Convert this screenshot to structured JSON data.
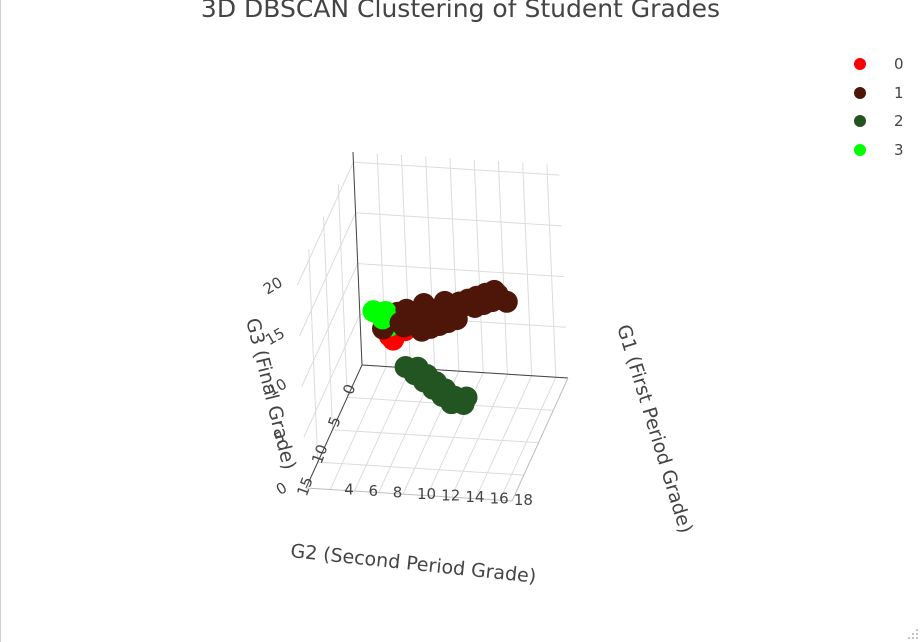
{
  "chart_data": {
    "type": "scatter",
    "title": "3D DBSCAN Clustering of Student Grades",
    "axes": {
      "x": {
        "label": "G1 (First Period Grade)",
        "ticks": [
          "4",
          "6",
          "8",
          "10",
          "12",
          "14",
          "16",
          "18"
        ]
      },
      "y": {
        "label": "G2 (Second Period Grade)",
        "ticks": [
          "0",
          "5",
          "10",
          "15"
        ]
      },
      "z": {
        "label": "G3 (Final Grade)",
        "ticks": [
          "0",
          "5",
          "10",
          "15",
          "20"
        ]
      }
    },
    "legend_position": "top-right",
    "series": [
      {
        "name": "0",
        "color": "#ff0000",
        "points": [
          [
            6,
            5,
            6
          ],
          [
            7,
            5,
            7
          ],
          [
            6,
            6,
            7
          ],
          [
            7,
            6,
            8
          ],
          [
            6,
            5,
            7
          ]
        ]
      },
      {
        "name": "1",
        "color": "#4e1609",
        "points": [
          [
            6,
            8,
            9
          ],
          [
            7,
            7,
            10
          ],
          [
            8,
            9,
            10
          ],
          [
            8,
            8,
            11
          ],
          [
            9,
            9,
            11
          ],
          [
            9,
            10,
            12
          ],
          [
            10,
            9,
            12
          ],
          [
            10,
            10,
            13
          ],
          [
            11,
            11,
            13
          ],
          [
            11,
            10,
            12
          ],
          [
            12,
            11,
            14
          ],
          [
            12,
            12,
            13
          ],
          [
            13,
            12,
            14
          ],
          [
            13,
            13,
            15
          ],
          [
            14,
            13,
            15
          ],
          [
            14,
            14,
            16
          ],
          [
            15,
            14,
            16
          ],
          [
            15,
            15,
            17
          ],
          [
            16,
            15,
            17
          ],
          [
            16,
            16,
            18
          ],
          [
            17,
            16,
            18
          ],
          [
            17,
            17,
            19
          ],
          [
            18,
            17,
            19
          ],
          [
            18,
            18,
            20
          ],
          [
            19,
            18,
            19
          ],
          [
            10,
            11,
            11
          ],
          [
            11,
            12,
            12
          ],
          [
            12,
            13,
            13
          ],
          [
            13,
            14,
            14
          ],
          [
            14,
            15,
            15
          ],
          [
            9,
            8,
            10
          ],
          [
            8,
            10,
            11
          ],
          [
            15,
            13,
            15
          ],
          [
            16,
            14,
            16
          ],
          [
            17,
            15,
            17
          ],
          [
            12,
            10,
            12
          ],
          [
            10,
            12,
            12
          ],
          [
            11,
            9,
            11
          ]
        ]
      },
      {
        "name": "2",
        "color": "#225522",
        "points": [
          [
            8,
            9,
            6
          ],
          [
            9,
            9,
            6
          ],
          [
            9,
            10,
            6
          ],
          [
            10,
            10,
            6
          ],
          [
            10,
            11,
            6
          ],
          [
            11,
            11,
            6
          ],
          [
            11,
            12,
            6
          ],
          [
            12,
            12,
            6
          ],
          [
            12,
            13,
            6
          ],
          [
            13,
            13,
            6
          ],
          [
            14,
            13,
            6
          ],
          [
            13,
            14,
            6
          ],
          [
            14,
            14,
            6
          ]
        ]
      },
      {
        "name": "3",
        "color": "#00ff00",
        "points": [
          [
            6,
            6,
            8
          ],
          [
            6,
            6,
            9
          ],
          [
            6,
            7,
            9
          ],
          [
            6,
            7,
            10
          ],
          [
            5,
            7,
            10
          ],
          [
            6,
            8,
            10
          ]
        ]
      }
    ]
  }
}
